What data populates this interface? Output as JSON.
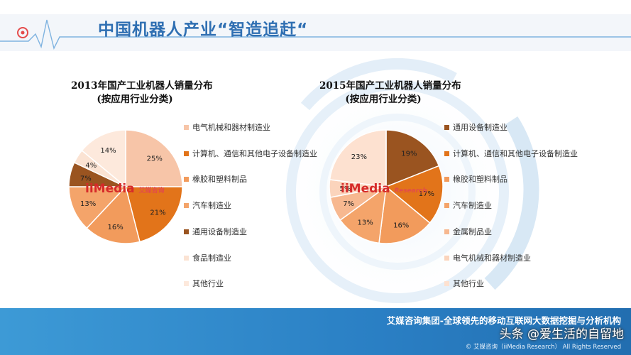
{
  "slide": {
    "title": "中国机器人产业“智造追赶“"
  },
  "colors": {
    "accent_blue": "#2f6fb2",
    "footer_blue": "#2a7fc4"
  },
  "chart_data": [
    {
      "type": "pie",
      "title": "2013年国产工业机器人销量分布",
      "subtitle": "(按应用行业分类)",
      "legend_position": "right",
      "slices": [
        {
          "label": "电气机械和器材制造业",
          "value": 25,
          "data_label": "25%",
          "color": "#f7c5a8"
        },
        {
          "label": "计算机、通信和其他电子设备制造业",
          "value": 21,
          "data_label": "21%",
          "color": "#e2741a"
        },
        {
          "label": "橡胶和塑料制品",
          "value": 16,
          "data_label": "16%",
          "color": "#f29b5c"
        },
        {
          "label": "汽车制造业",
          "value": 13,
          "data_label": "13%",
          "color": "#f4a46a"
        },
        {
          "label": "通用设备制造业",
          "value": 7,
          "data_label": "7%",
          "color": "#9a5420"
        },
        {
          "label": "食品制造业",
          "value": 4,
          "data_label": "4%",
          "color": "#fbe3d3"
        },
        {
          "label": "其他行业",
          "value": 14,
          "data_label": "14%",
          "color": "#fde9dc"
        }
      ]
    },
    {
      "type": "pie",
      "title": "2015年国产工业机器人销量分布",
      "subtitle": "(按应用行业分类)",
      "legend_position": "right",
      "slices": [
        {
          "label": "通用设备制造业",
          "value": 19,
          "data_label": "19%",
          "color": "#9a5420"
        },
        {
          "label": "计算机、通信和其他电子设备制造业",
          "value": 17,
          "data_label": "17%",
          "color": "#e2741a"
        },
        {
          "label": "橡胶和塑料制品",
          "value": 16,
          "data_label": "16%",
          "color": "#f29b5c"
        },
        {
          "label": "汽车制造业",
          "value": 13,
          "data_label": "13%",
          "color": "#f4a46a"
        },
        {
          "label": "金属制品业",
          "value": 7,
          "data_label": "7%",
          "color": "#f7b890"
        },
        {
          "label": "电气机械和器材制造业",
          "value": 5,
          "data_label": "5%",
          "color": "#fbd4bc"
        },
        {
          "label": "其他行业",
          "value": 23,
          "data_label": "23%",
          "color": "#fde1d0"
        }
      ]
    }
  ],
  "watermark": {
    "brand": "iiMedia",
    "brand_cn": "艾媒咨询",
    "brand_en": "Research"
  },
  "footer": {
    "main_text": "艾媒咨询集团-全球领先的移动互联网大数据挖掘与分析机构",
    "sub_text": "© 艾媒咨询（iiMedia Research） All Rights Reserved",
    "overlay_text": "头条 @爱生活的自留地"
  }
}
